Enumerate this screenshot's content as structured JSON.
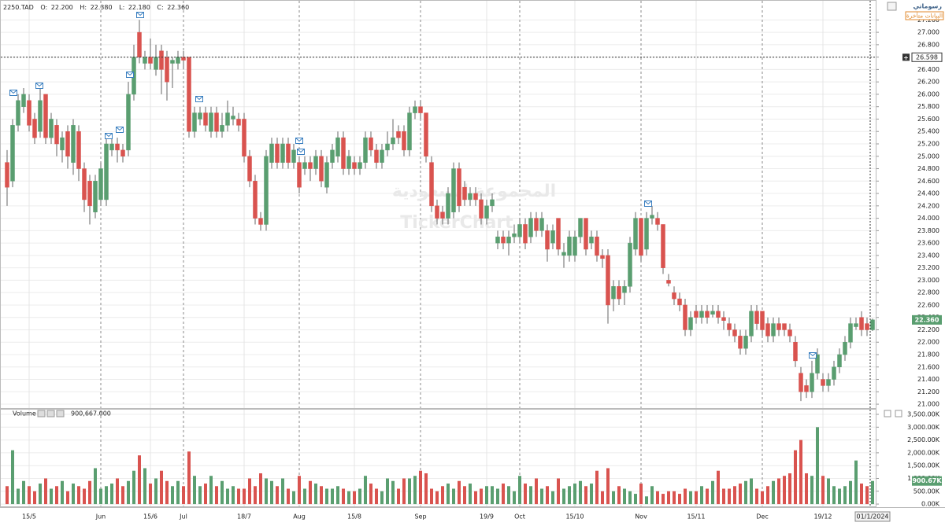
{
  "chart_data": {
    "type": "candlestick",
    "symbol": "2250.TAD",
    "ohlc_readout": [
      {
        "label": "O:",
        "value": "22.200"
      },
      {
        "label": "H:",
        "value": "22.380"
      },
      {
        "label": "L:",
        "value": "22.180"
      },
      {
        "label": "C:",
        "value": "22.360"
      }
    ],
    "logo": "رسوماتي",
    "delay_notice": "البيانات متأخرة",
    "watermark": [
      "المجموعة السعودية",
      "TickerChart"
    ],
    "volume_title": "Volume",
    "volume_readout": "900,667.000",
    "categories": [
      null,
      null,
      null,
      null,
      "15/5",
      null,
      null,
      null,
      null,
      null,
      null,
      null,
      null,
      null,
      null,
      null,
      null,
      "Jun",
      null,
      null,
      null,
      null,
      null,
      null,
      null,
      null,
      "15/6",
      null,
      null,
      null,
      null,
      null,
      "Jul",
      null,
      null,
      null,
      null,
      null,
      null,
      null,
      null,
      null,
      null,
      "18/7",
      null,
      null,
      null,
      null,
      null,
      null,
      null,
      null,
      null,
      "Aug",
      null,
      null,
      null,
      null,
      null,
      null,
      null,
      null,
      null,
      "15/8",
      null,
      null,
      null,
      null,
      null,
      null,
      null,
      null,
      null,
      null,
      null,
      "Sep",
      null,
      null,
      null,
      null,
      null,
      null,
      null,
      null,
      null,
      null,
      null,
      "19/9",
      null,
      null,
      null,
      null,
      null,
      "Oct",
      null,
      null,
      null,
      null,
      null,
      null,
      null,
      null,
      null,
      "15/10",
      null,
      null,
      null,
      null,
      null,
      null,
      null,
      null,
      null,
      null,
      null,
      "Nov",
      null,
      null,
      null,
      null,
      null,
      null,
      null,
      null,
      null,
      "15/11",
      null,
      null,
      null,
      null,
      null,
      null,
      null,
      null,
      null,
      null,
      null,
      "Dec",
      null,
      null,
      null,
      null,
      null,
      null,
      null,
      null,
      null,
      null,
      "19/12",
      null,
      null,
      null,
      null,
      null,
      null,
      null,
      null,
      "01/1/2024"
    ],
    "open": [
      24.9,
      24.6,
      25.5,
      25.8,
      25.9,
      25.6,
      25.4,
      26.0,
      25.3,
      25.5,
      25.1,
      25.4,
      24.9,
      25.4,
      24.8,
      24.6,
      24.1,
      24.3,
      24.3,
      25.1,
      25.2,
      25.1,
      25.1,
      26.0,
      27.0,
      26.5,
      26.6,
      26.4,
      26.7,
      26.6,
      26.5,
      26.5,
      26.6,
      26.6,
      25.4,
      25.6,
      25.7,
      25.4,
      25.7,
      25.4,
      25.5,
      25.6,
      25.6,
      25.6,
      25.0,
      24.6,
      24.0,
      23.9,
      24.9,
      25.2,
      24.9,
      25.2,
      24.9,
      24.9,
      24.8,
      24.9,
      24.8,
      25.0,
      24.5,
      24.9,
      25.0,
      25.3,
      24.8,
      24.9,
      24.8,
      24.9,
      25.3,
      25.1,
      24.9,
      25.1,
      25.2,
      25.4,
      25.4,
      25.1,
      25.7,
      25.8,
      25.7,
      24.9,
      24.2,
      24.1,
      24.0,
      24.1,
      24.8,
      24.5,
      24.3,
      24.4,
      24.3,
      24.0,
      24.2,
      23.6,
      23.7,
      23.6,
      23.7,
      23.7,
      23.9,
      23.7,
      24.0,
      23.8,
      23.8,
      23.6,
      24.0,
      23.4,
      23.4,
      23.4,
      23.7,
      24.0,
      23.6,
      23.7,
      23.4,
      23.4,
      22.7,
      22.9,
      22.8,
      22.9,
      23.5,
      24.0,
      23.5,
      24.0,
      24.0,
      23.9,
      23.0,
      22.8,
      22.7,
      22.6,
      22.2,
      22.5,
      22.4,
      22.5,
      22.45,
      22.5,
      22.4,
      22.3,
      22.2,
      22.1,
      21.9,
      22.1,
      22.5,
      22.5,
      22.3,
      22.1,
      22.3,
      22.3,
      22.2,
      22.0,
      21.5,
      21.3,
      21.2,
      21.5,
      21.4,
      21.3,
      21.4,
      21.6,
      21.8,
      22.0,
      22.25,
      22.4,
      22.3,
      22.2
    ],
    "high": [
      25.1,
      25.6,
      26.0,
      26.1,
      26.0,
      25.7,
      26.1,
      26.0,
      25.7,
      25.6,
      25.4,
      25.5,
      25.6,
      25.5,
      24.9,
      24.7,
      24.7,
      24.9,
      25.3,
      25.3,
      25.3,
      25.2,
      26.2,
      26.8,
      27.2,
      26.7,
      26.9,
      26.8,
      26.8,
      26.7,
      26.6,
      26.7,
      26.7,
      26.6,
      25.8,
      25.8,
      25.8,
      25.8,
      25.8,
      25.7,
      25.9,
      25.8,
      25.7,
      25.7,
      25.1,
      24.7,
      24.1,
      25.1,
      25.3,
      25.3,
      25.3,
      25.3,
      25.2,
      25.0,
      25.0,
      25.0,
      25.1,
      25.1,
      25.0,
      25.2,
      25.4,
      25.4,
      25.1,
      25.0,
      25.0,
      25.4,
      25.4,
      25.2,
      25.2,
      25.4,
      25.6,
      25.5,
      25.5,
      25.8,
      25.9,
      25.9,
      25.7,
      25.0,
      24.3,
      24.2,
      24.5,
      24.9,
      24.9,
      24.6,
      24.5,
      24.5,
      24.4,
      24.3,
      24.4,
      23.8,
      23.8,
      23.8,
      23.9,
      24.0,
      24.0,
      24.1,
      24.1,
      24.1,
      23.9,
      23.9,
      24.0,
      23.6,
      23.8,
      23.8,
      24.0,
      24.0,
      23.8,
      23.8,
      23.5,
      23.5,
      23.0,
      23.0,
      23.0,
      23.7,
      24.1,
      24.0,
      24.1,
      24.2,
      24.1,
      23.9,
      23.1,
      22.9,
      22.8,
      22.7,
      22.5,
      22.6,
      22.6,
      22.6,
      22.6,
      22.6,
      22.5,
      22.4,
      22.3,
      22.2,
      22.2,
      22.6,
      22.6,
      22.5,
      22.4,
      22.4,
      22.4,
      22.3,
      22.3,
      22.1,
      21.6,
      21.4,
      21.7,
      21.9,
      21.5,
      21.5,
      21.7,
      21.9,
      22.1,
      22.4,
      22.4,
      22.5,
      22.4,
      22.38
    ],
    "low": [
      24.2,
      24.5,
      25.4,
      25.7,
      25.4,
      25.2,
      25.3,
      25.2,
      25.2,
      25.0,
      24.9,
      24.8,
      24.7,
      24.6,
      24.1,
      23.9,
      24.0,
      24.2,
      24.2,
      25.0,
      24.9,
      24.9,
      25.0,
      25.9,
      26.5,
      26.4,
      26.4,
      26.3,
      26.0,
      25.9,
      26.1,
      26.4,
      26.4,
      25.3,
      25.3,
      25.5,
      25.4,
      25.3,
      25.3,
      25.3,
      25.4,
      25.5,
      25.4,
      24.9,
      24.5,
      23.9,
      23.8,
      23.8,
      24.8,
      24.8,
      24.8,
      24.8,
      24.8,
      24.4,
      24.7,
      24.6,
      24.7,
      24.5,
      24.4,
      24.8,
      24.9,
      24.7,
      24.7,
      24.7,
      24.7,
      24.8,
      25.0,
      24.8,
      24.8,
      25.0,
      25.1,
      25.2,
      25.0,
      25.0,
      25.6,
      25.6,
      24.9,
      24.1,
      23.9,
      23.9,
      23.9,
      24.0,
      24.1,
      24.2,
      24.2,
      24.2,
      23.9,
      23.9,
      24.1,
      23.5,
      23.5,
      23.4,
      23.6,
      23.6,
      23.5,
      23.6,
      23.7,
      23.7,
      23.3,
      23.5,
      23.4,
      23.2,
      23.3,
      23.3,
      23.6,
      23.4,
      23.5,
      23.3,
      23.2,
      22.3,
      22.5,
      22.6,
      22.6,
      22.8,
      23.4,
      23.3,
      23.4,
      23.9,
      23.8,
      23.1,
      22.9,
      22.6,
      22.5,
      22.1,
      22.1,
      22.3,
      22.3,
      22.3,
      22.4,
      22.3,
      22.2,
      22.1,
      22.0,
      21.8,
      21.8,
      22.0,
      22.2,
      22.1,
      22.0,
      22.0,
      22.1,
      22.1,
      22.0,
      21.6,
      21.05,
      21.1,
      21.1,
      21.4,
      21.2,
      21.2,
      21.3,
      21.5,
      21.7,
      21.9,
      22.2,
      22.1,
      22.1,
      22.18
    ],
    "close": [
      24.5,
      25.5,
      25.9,
      26.0,
      25.5,
      25.3,
      25.9,
      25.3,
      25.6,
      25.2,
      25.3,
      25.0,
      25.5,
      24.8,
      24.3,
      24.2,
      24.6,
      24.8,
      25.2,
      25.2,
      25.1,
      25.0,
      26.0,
      26.6,
      26.6,
      26.6,
      26.5,
      26.6,
      26.4,
      26.2,
      26.55,
      26.6,
      26.55,
      25.4,
      25.7,
      25.7,
      25.5,
      25.7,
      25.4,
      25.5,
      25.7,
      25.65,
      25.5,
      25.0,
      24.6,
      24.0,
      23.9,
      25.0,
      25.2,
      24.9,
      25.2,
      24.9,
      25.1,
      24.5,
      24.9,
      24.8,
      25.0,
      24.6,
      24.9,
      25.1,
      25.3,
      24.8,
      25.0,
      24.8,
      24.9,
      25.3,
      25.1,
      24.9,
      25.1,
      25.2,
      25.3,
      25.3,
      25.1,
      25.7,
      25.8,
      25.7,
      25.0,
      24.2,
      24.0,
      24.0,
      24.4,
      24.8,
      24.2,
      24.3,
      24.4,
      24.3,
      24.0,
      24.2,
      24.3,
      23.7,
      23.6,
      23.7,
      23.75,
      23.9,
      23.6,
      24.0,
      23.8,
      24.0,
      23.5,
      23.8,
      23.5,
      23.45,
      23.7,
      23.7,
      24.0,
      23.5,
      23.7,
      23.4,
      23.35,
      22.6,
      22.9,
      22.7,
      22.9,
      23.6,
      24.0,
      23.4,
      24.0,
      24.05,
      23.9,
      23.2,
      22.95,
      22.7,
      22.6,
      22.2,
      22.4,
      22.4,
      22.5,
      22.4,
      22.5,
      22.4,
      22.35,
      22.2,
      22.1,
      21.9,
      22.1,
      22.5,
      22.3,
      22.2,
      22.1,
      22.3,
      22.2,
      22.2,
      22.1,
      21.7,
      21.2,
      21.2,
      21.5,
      21.8,
      21.3,
      21.4,
      21.6,
      21.8,
      22.0,
      22.3,
      22.3,
      22.2,
      22.2,
      22.36
    ],
    "volume": [
      700,
      2100,
      600,
      900,
      700,
      500,
      800,
      1000,
      600,
      700,
      900,
      500,
      800,
      700,
      600,
      900,
      1400,
      600,
      700,
      800,
      1000,
      700,
      900,
      1300,
      1900,
      1400,
      800,
      1000,
      1300,
      900,
      700,
      900,
      700,
      2050,
      1100,
      700,
      800,
      1100,
      700,
      900,
      600,
      700,
      600,
      600,
      1000,
      700,
      1200,
      1000,
      900,
      700,
      1000,
      600,
      500,
      1100,
      600,
      900,
      800,
      700,
      600,
      600,
      700,
      600,
      500,
      500,
      600,
      1100,
      800,
      600,
      500,
      1000,
      900,
      600,
      1000,
      1000,
      1100,
      1300,
      1200,
      600,
      500,
      700,
      800,
      600,
      900,
      700,
      800,
      500,
      600,
      700,
      700,
      600,
      800,
      700,
      500,
      1100,
      800,
      700,
      1000,
      600,
      700,
      500,
      1000,
      600,
      700,
      800,
      900,
      700,
      800,
      1300,
      500,
      1400,
      500,
      700,
      600,
      500,
      400,
      800,
      300,
      700,
      500,
      400,
      500,
      500,
      400,
      600,
      500,
      500,
      700,
      600,
      900,
      1300,
      600,
      600,
      700,
      800,
      900,
      1000,
      600,
      500,
      700,
      900,
      1000,
      1100,
      1200,
      2100,
      2500,
      1200,
      1100,
      3000,
      1100,
      1000,
      700,
      600,
      700,
      900,
      1700,
      800,
      700,
      900.667
    ],
    "up_color": "#5a9e70",
    "down_color": "#d9534f",
    "wick_color": "#666666",
    "ylim": [
      20.95,
      27.42
    ],
    "yticks": [
      {
        "value": 21,
        "label": "21.000"
      },
      {
        "value": 21.2,
        "label": "21.200"
      },
      {
        "value": 21.4,
        "label": "21.400"
      },
      {
        "value": 21.6,
        "label": "21.600"
      },
      {
        "value": 21.8,
        "label": "21.800"
      },
      {
        "value": 22,
        "label": "22.000"
      },
      {
        "value": 22.2,
        "label": "22.200"
      },
      {
        "value": 22.4,
        "label": "22.400"
      },
      {
        "value": 22.6,
        "label": "22.600"
      },
      {
        "value": 22.8,
        "label": "22.800"
      },
      {
        "value": 23,
        "label": "23.000"
      },
      {
        "value": 23.2,
        "label": "23.200"
      },
      {
        "value": 23.4,
        "label": "23.400"
      },
      {
        "value": 23.6,
        "label": "23.600"
      },
      {
        "value": 23.8,
        "label": "23.800"
      },
      {
        "value": 24,
        "label": "24.000"
      },
      {
        "value": 24.2,
        "label": "24.200"
      },
      {
        "value": 24.4,
        "label": "24.400"
      },
      {
        "value": 24.6,
        "label": "24.600"
      },
      {
        "value": 24.8,
        "label": "24.800"
      },
      {
        "value": 25,
        "label": "25.000"
      },
      {
        "value": 25.2,
        "label": "25.200"
      },
      {
        "value": 25.4,
        "label": "25.400"
      },
      {
        "value": 25.6,
        "label": "25.600"
      },
      {
        "value": 25.8,
        "label": "25.800"
      },
      {
        "value": 26,
        "label": "26.000"
      },
      {
        "value": 26.2,
        "label": "26.200"
      },
      {
        "value": 26.4,
        "label": "26.400"
      },
      {
        "value": 26.6,
        "label": "26.600"
      },
      {
        "value": 26.8,
        "label": "26.800"
      },
      {
        "value": 27,
        "label": "27.000"
      },
      {
        "value": 27.2,
        "label": "27.200"
      }
    ],
    "volume_ylim": [
      -120,
      3715
    ],
    "volume_yticks": [
      {
        "value": 0,
        "label": "0.00K"
      },
      {
        "value": 500,
        "label": "500.00K"
      },
      {
        "value": 1000,
        "label": "1,000.00K"
      },
      {
        "value": 1500,
        "label": "1,500.00K"
      },
      {
        "value": 2000,
        "label": "2,000.00K"
      },
      {
        "value": 2500,
        "label": "2,500.00K"
      },
      {
        "value": 3000,
        "label": "3,000.00K"
      },
      {
        "value": 3500,
        "label": "3,500.00K"
      }
    ],
    "grid": true,
    "crosshair_price": 26.598,
    "price_tag": {
      "value": 22.36,
      "label": "22.360"
    },
    "volume_tag": {
      "value": 900.667,
      "label": "900.67K"
    }
  }
}
